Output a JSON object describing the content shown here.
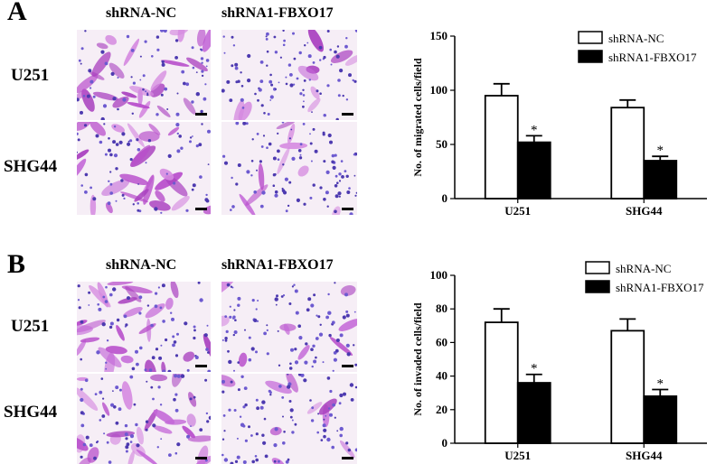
{
  "panels": [
    {
      "letter": "A",
      "columns": [
        "shRNA-NC",
        "shRNA1-FBXO17"
      ],
      "rows": [
        "U251",
        "SHG44"
      ]
    },
    {
      "letter": "B",
      "columns": [
        "shRNA-NC",
        "shRNA1-FBXO17"
      ],
      "rows": [
        "U251",
        "SHG44"
      ]
    }
  ],
  "chart_data": [
    {
      "type": "bar",
      "categories": [
        "U251",
        "SHG44"
      ],
      "series": [
        {
          "name": "shRNA-NC",
          "values": [
            95,
            84
          ],
          "errors": [
            11,
            7
          ],
          "fill": "#ffffff"
        },
        {
          "name": "shRNA1-FBXO17",
          "values": [
            52,
            35
          ],
          "errors": [
            6,
            4
          ],
          "fill": "#000000"
        }
      ],
      "significance": [
        "*",
        "*"
      ],
      "ylabel": "No. of migrated cells/field",
      "ylim": [
        0,
        150
      ],
      "yticks": [
        0,
        50,
        100,
        150
      ],
      "legend_position": "top-right"
    },
    {
      "type": "bar",
      "categories": [
        "U251",
        "SHG44"
      ],
      "series": [
        {
          "name": "shRNA-NC",
          "values": [
            72,
            67
          ],
          "errors": [
            8,
            7
          ],
          "fill": "#ffffff"
        },
        {
          "name": "shRNA1-FBXO17",
          "values": [
            36,
            28
          ],
          "errors": [
            5,
            4
          ],
          "fill": "#000000"
        }
      ],
      "significance": [
        "*",
        "*"
      ],
      "ylabel": "No. of invaded cells/field",
      "ylim": [
        0,
        100
      ],
      "yticks": [
        0,
        20,
        40,
        60,
        80,
        100
      ],
      "legend_position": "top-right"
    }
  ],
  "legend_labels_chart_b": [
    "shRNA-NC",
    "shRNA1-FBXO17"
  ]
}
